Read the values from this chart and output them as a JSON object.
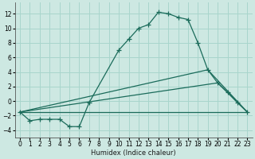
{
  "xlabel": "Humidex (Indice chaleur)",
  "background_color": "#cde8e2",
  "grid_color": "#a8d5cc",
  "line_color": "#1a6b5a",
  "xlim": [
    -0.5,
    23.5
  ],
  "ylim": [
    -5,
    13.5
  ],
  "xticks": [
    0,
    1,
    2,
    3,
    4,
    5,
    6,
    7,
    8,
    9,
    10,
    11,
    12,
    13,
    14,
    15,
    16,
    17,
    18,
    19,
    20,
    21,
    22,
    23
  ],
  "yticks": [
    -4,
    -2,
    0,
    2,
    4,
    6,
    8,
    10,
    12
  ],
  "main_x": [
    0,
    1,
    2,
    3,
    4,
    5,
    6,
    7,
    10,
    11,
    12,
    13,
    14,
    15,
    16,
    17,
    18,
    19,
    20,
    21,
    22,
    23
  ],
  "main_y": [
    -1.5,
    -2.7,
    -2.5,
    -2.5,
    -2.5,
    -3.5,
    -3.5,
    -0.2,
    7.0,
    8.5,
    10.0,
    10.5,
    12.2,
    12.0,
    11.5,
    11.2,
    8.0,
    4.3,
    2.5,
    1.2,
    -0.2,
    -1.5
  ],
  "line2_x": [
    0,
    23
  ],
  "line2_y": [
    -1.5,
    -1.5
  ],
  "line3_x": [
    0,
    19,
    23
  ],
  "line3_y": [
    -1.5,
    4.3,
    -1.5
  ],
  "line4_x": [
    0,
    20,
    23
  ],
  "line4_y": [
    -1.5,
    2.5,
    -1.5
  ]
}
